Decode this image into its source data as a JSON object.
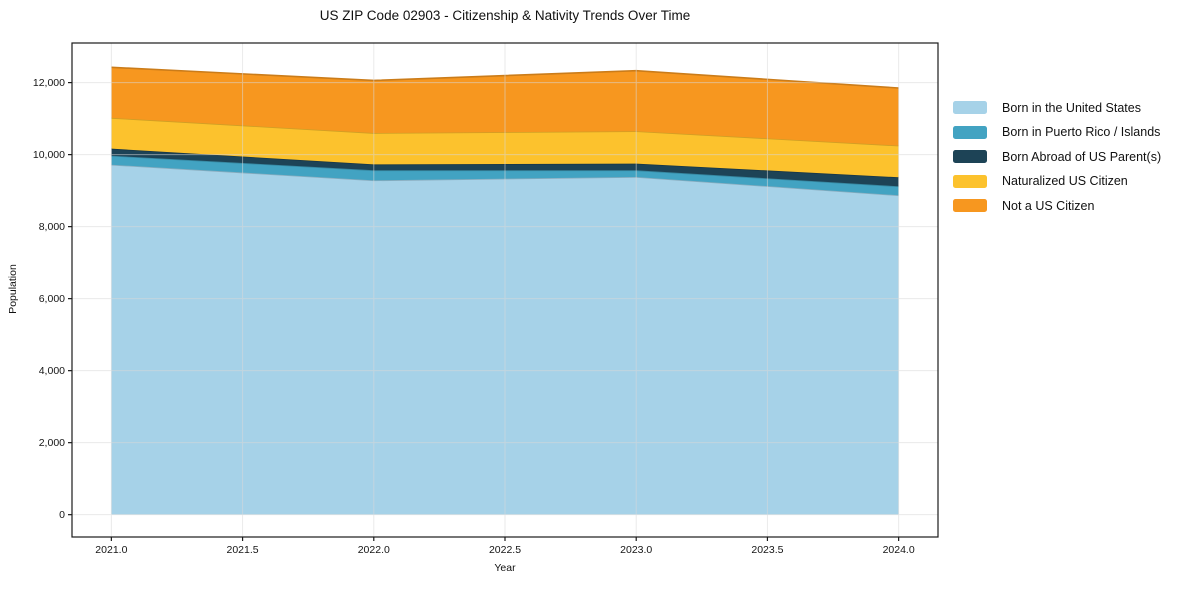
{
  "figure": {
    "title": "US ZIP Code 02903 - Citizenship & Nativity Trends Over Time",
    "xlabel": "Year",
    "ylabel": "Population"
  },
  "chart_data": {
    "type": "area",
    "stacked": true,
    "title": "US ZIP Code 02903 - Citizenship & Nativity Trends Over Time",
    "xlabel": "Year",
    "ylabel": "Population",
    "x": [
      2021,
      2022,
      2023,
      2024
    ],
    "series": [
      {
        "name": "Born in the United States",
        "color": "#a6d2e8",
        "values": [
          9720,
          9285,
          9380,
          8870
        ]
      },
      {
        "name": "Born in Puerto Rico / Islands",
        "color": "#42a3c2",
        "values": [
          250,
          280,
          185,
          250
        ]
      },
      {
        "name": "Born Abroad of US Parent(s)",
        "color": "#1d4356",
        "values": [
          195,
          165,
          185,
          250
        ]
      },
      {
        "name": "Naturalized US Citizen",
        "color": "#fcc22d",
        "values": [
          855,
          870,
          900,
          880
        ]
      },
      {
        "name": "Not a US Citizen",
        "color": "#f7971f",
        "values": [
          1405,
          1460,
          1680,
          1600
        ]
      }
    ],
    "totals": [
      12425,
      12060,
      12330,
      11850
    ],
    "xticks": [
      2021.0,
      2021.5,
      2022.0,
      2022.5,
      2023.0,
      2023.5,
      2024.0
    ],
    "xtick_labels": [
      "2021.0",
      "2021.5",
      "2022.0",
      "2022.5",
      "2023.0",
      "2023.5",
      "2024.0"
    ],
    "yticks": [
      0,
      2000,
      4000,
      6000,
      8000,
      10000,
      12000
    ],
    "ytick_labels": [
      "0",
      "2,000",
      "4,000",
      "6,000",
      "8,000",
      "10,000",
      "12,000"
    ],
    "xlim": [
      2020.85,
      2024.15
    ],
    "ylim": [
      -620,
      13100
    ],
    "grid": true,
    "grid_color": "#d9d9d9",
    "spine_color": "#1a1a1a",
    "legend_position": "right-outside"
  }
}
